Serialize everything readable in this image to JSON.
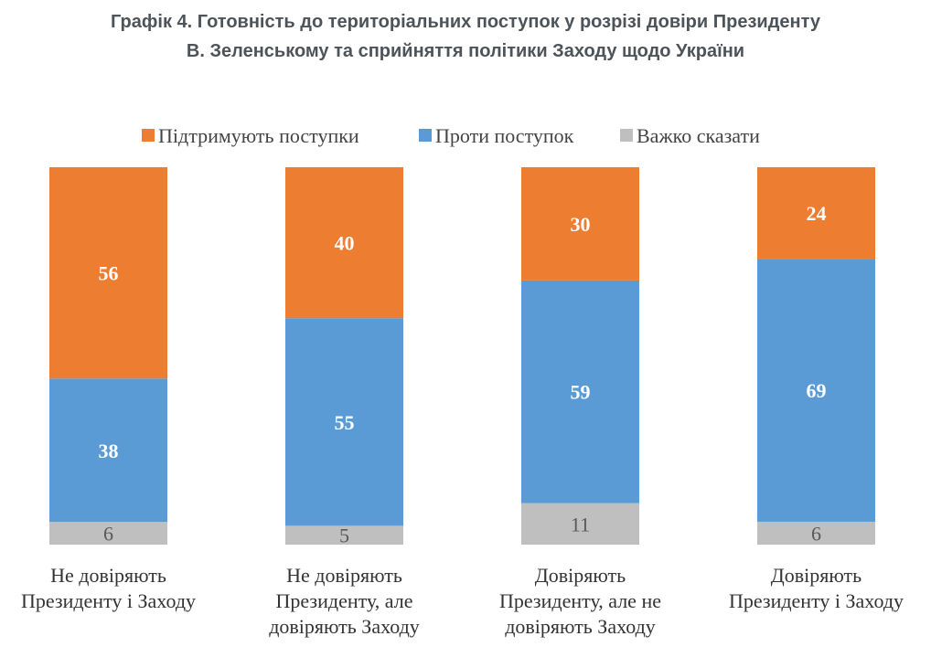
{
  "title": {
    "line1": "Графік 4. Готовність до територіальних поступок у розрізі довіри Президенту",
    "line2": "В. Зеленському та сприйняття політики Заходу щодо України"
  },
  "chart_data": {
    "type": "bar",
    "stacked": true,
    "title": "Графік 4. Готовність до територіальних поступок у розрізі довіри Президенту В. Зеленському та сприйняття політики Заходу щодо України",
    "categories": [
      [
        "Не довіряють",
        "Президенту і Заходу"
      ],
      [
        "Не довіряють",
        "Президенту, але",
        "довіряють Заходу"
      ],
      [
        "Довіряють",
        "Президенту, але не",
        "довіряють Заходу"
      ],
      [
        "Довіряють",
        "Президенту і Заходу"
      ]
    ],
    "series": [
      {
        "name": "Важко сказати",
        "color": "#bfbfbf",
        "label_style": "grey",
        "values": [
          6,
          5,
          11,
          6
        ]
      },
      {
        "name": "Проти поступок",
        "color": "#5b9bd5",
        "label_style": "white",
        "values": [
          38,
          55,
          59,
          69
        ]
      },
      {
        "name": "Підтримують поступки",
        "color": "#ed7d31",
        "label_style": "white",
        "values": [
          56,
          40,
          30,
          24
        ]
      }
    ],
    "legend_order": [
      "Підтримують поступки",
      "Проти поступок",
      "Важко сказати"
    ],
    "legend_position": "top",
    "ylim": [
      0,
      100
    ],
    "grid": false
  }
}
